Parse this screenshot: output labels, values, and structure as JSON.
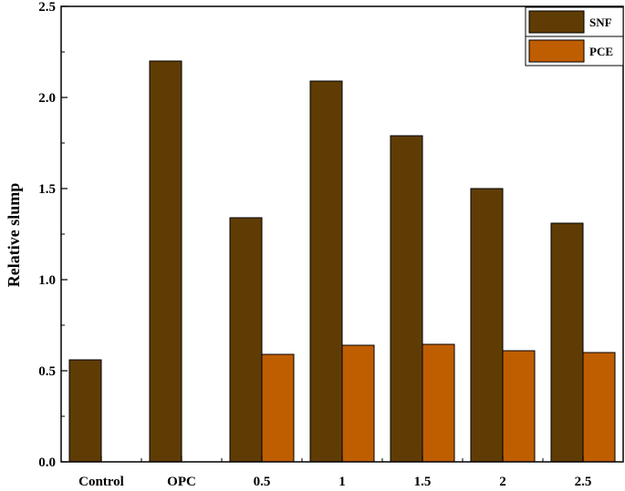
{
  "chart_data": {
    "type": "bar",
    "title": "",
    "xlabel": "",
    "ylabel": "Relative slump",
    "ylim": [
      0,
      2.5
    ],
    "yticks": [
      "0.0",
      "0.5",
      "1.0",
      "1.5",
      "2.0",
      "2.5"
    ],
    "ytick_values": [
      0,
      0.5,
      1.0,
      1.5,
      2.0,
      2.5
    ],
    "categories": [
      "Control",
      "OPC",
      "0.5",
      "1",
      "1.5",
      "2",
      "2.5"
    ],
    "series": [
      {
        "name": "SNF",
        "color": "#603c05",
        "values": [
          0.56,
          2.2,
          1.34,
          2.09,
          1.79,
          1.5,
          1.31
        ]
      },
      {
        "name": "PCE",
        "color": "#bf5e00",
        "values": [
          null,
          null,
          0.59,
          0.64,
          0.645,
          0.61,
          0.6
        ]
      }
    ],
    "legend_position": "top-right",
    "grid": false
  }
}
